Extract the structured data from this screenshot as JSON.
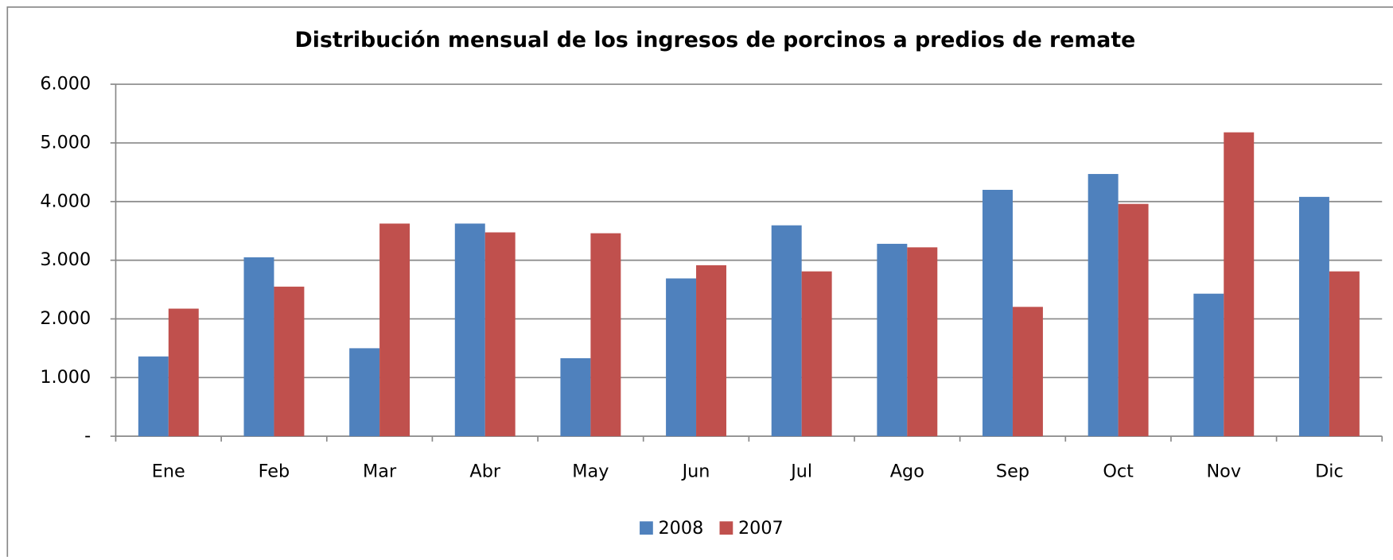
{
  "chart_data": {
    "type": "bar",
    "title": "Distribución mensual de los ingresos de porcinos a predios de remate",
    "categories": [
      "Ene",
      "Feb",
      "Mar",
      "Abr",
      "May",
      "Jun",
      "Jul",
      "Ago",
      "Sep",
      "Oct",
      "Nov",
      "Dic"
    ],
    "series": [
      {
        "name": "2008",
        "color": "#4f81bd",
        "values": [
          1360,
          3050,
          1500,
          3625,
          1330,
          2690,
          3595,
          3280,
          4200,
          4470,
          2430,
          4080
        ]
      },
      {
        "name": "2007",
        "color": "#c0504d",
        "values": [
          2175,
          2550,
          3625,
          3475,
          3460,
          2915,
          2810,
          3220,
          2205,
          3960,
          5180,
          2810
        ]
      }
    ],
    "ylim": [
      0,
      6000
    ],
    "yticks": [
      {
        "value": 0,
        "label": "-"
      },
      {
        "value": 1000,
        "label": "1.000"
      },
      {
        "value": 2000,
        "label": "2.000"
      },
      {
        "value": 3000,
        "label": "3.000"
      },
      {
        "value": 4000,
        "label": "4.000"
      },
      {
        "value": 5000,
        "label": "5.000"
      },
      {
        "value": 6000,
        "label": "6.000"
      }
    ],
    "grid": true,
    "legend": "bottom"
  }
}
